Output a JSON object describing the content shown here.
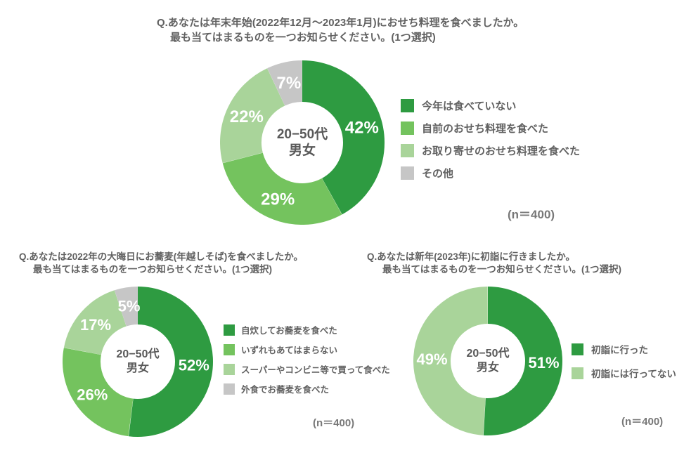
{
  "colors": {
    "dark_green": "#2e9b41",
    "medium_green": "#74c35e",
    "light_green": "#a9d49a",
    "gray": "#c6c6c6",
    "title_text": "#616161",
    "center_text": "#595959",
    "value_label_text": "#ffffff"
  },
  "chart_data": [
    {
      "type": "pie",
      "style": "donut",
      "title_line1": "Q.あなたは年末年始(2022年12月〜2023年1月)におせち料理を食べましたか。",
      "title_line2": "最も当てはまるものを一つお知らせください。(1つ選択)",
      "center_label_line1": "20−50代",
      "center_label_line2": "男女",
      "n_label": "(n＝400)",
      "value_suffix": "%",
      "legend_position": "right",
      "segments": [
        {
          "label": "今年は食べていない",
          "value": 42,
          "color": "#2e9b41"
        },
        {
          "label": "自前のおせち料理を食べた",
          "value": 29,
          "color": "#74c35e"
        },
        {
          "label": "お取り寄せのおせち料理を食べた",
          "value": 22,
          "color": "#a9d49a"
        },
        {
          "label": "その他",
          "value": 7,
          "color": "#c6c6c6"
        }
      ]
    },
    {
      "type": "pie",
      "style": "donut",
      "title_line1": "Q.あなたは2022年の大晦日にお蕎麦(年越しそば)を食べましたか。",
      "title_line2": "最も当てはまるものを一つお知らせください。(1つ選択)",
      "center_label_line1": "20−50代",
      "center_label_line2": "男女",
      "n_label": "(n＝400)",
      "value_suffix": "%",
      "legend_position": "right",
      "segments": [
        {
          "label": "自炊してお蕎麦を食べた",
          "value": 52,
          "color": "#2e9b41"
        },
        {
          "label": "いずれもあてはまらない",
          "value": 26,
          "color": "#74c35e"
        },
        {
          "label": "スーパーやコンビニ等で買って食べた",
          "value": 17,
          "color": "#a9d49a"
        },
        {
          "label": "外食でお蕎麦を食べた",
          "value": 5,
          "color": "#c6c6c6"
        }
      ]
    },
    {
      "type": "pie",
      "style": "donut",
      "title_line1": "Q.あなたは新年(2023年)に初詣に行きましたか。",
      "title_line2": "最も当てはまるものを一つお知らせください。(1つ選択)",
      "center_label_line1": "20−50代",
      "center_label_line2": "男女",
      "n_label": "(n＝400)",
      "value_suffix": "%",
      "legend_position": "right",
      "segments": [
        {
          "label": "初詣に行った",
          "value": 51,
          "color": "#2e9b41"
        },
        {
          "label": "初詣には行ってない",
          "value": 49,
          "color": "#a9d49a"
        }
      ]
    }
  ]
}
